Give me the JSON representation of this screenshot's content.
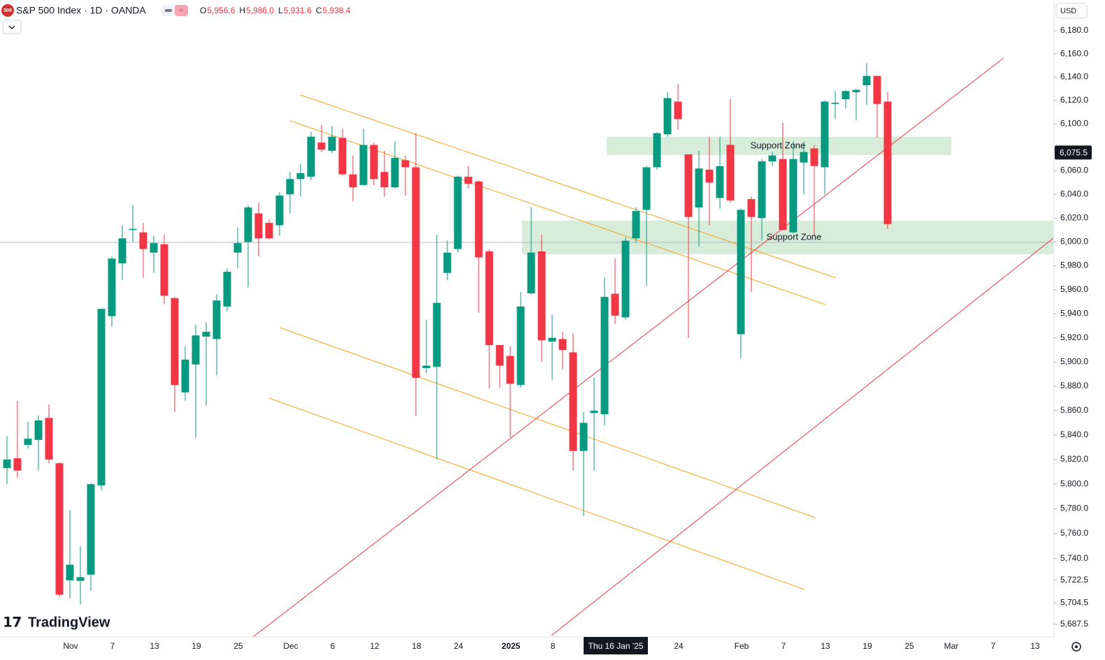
{
  "chart_data": {
    "type": "candlestick",
    "title": "S&P 500 Index · 1D · OANDA",
    "symbol_badge": "500",
    "currency": "USD",
    "brand": "TradingView",
    "legend_values": [
      {
        "key": "O",
        "value": "5,956.6"
      },
      {
        "key": "H",
        "value": "5,986.0"
      },
      {
        "key": "L",
        "value": "5,931.6"
      },
      {
        "key": "C",
        "value": "5,938.4"
      }
    ],
    "annotations": [
      "Support Zone",
      "Support Zone"
    ],
    "log_scale": true,
    "up_color": "#089981",
    "down_color": "#f23645",
    "ylim": [
      5678.4,
      6206.6
    ],
    "yticks": [
      {
        "value": 6180,
        "label": "6,180.0"
      },
      {
        "value": 6160,
        "label": "6,160.0"
      },
      {
        "value": 6140,
        "label": "6,140.0"
      },
      {
        "value": 6120,
        "label": "6,120.0"
      },
      {
        "value": 6100,
        "label": "6,100.0"
      },
      {
        "value": 6060,
        "label": "6,060.0"
      },
      {
        "value": 6040,
        "label": "6,040.0"
      },
      {
        "value": 6020,
        "label": "6,020.0"
      },
      {
        "value": 6000,
        "label": "6,000.0"
      },
      {
        "value": 5980,
        "label": "5,980.0"
      },
      {
        "value": 5960,
        "label": "5,960.0"
      },
      {
        "value": 5940,
        "label": "5,940.0"
      },
      {
        "value": 5920,
        "label": "5,920.0"
      },
      {
        "value": 5900,
        "label": "5,900.0"
      },
      {
        "value": 5880,
        "label": "5,880.0"
      },
      {
        "value": 5860,
        "label": "5,860.0"
      },
      {
        "value": 5840,
        "label": "5,840.0"
      },
      {
        "value": 5820,
        "label": "5,820.0"
      },
      {
        "value": 5800,
        "label": "5,800.0"
      },
      {
        "value": 5780,
        "label": "5,780.0"
      },
      {
        "value": 5760,
        "label": "5,760.0"
      },
      {
        "value": 5740,
        "label": "5,740.0"
      },
      {
        "value": 5722.5,
        "label": "5,722.5"
      },
      {
        "value": 5704.5,
        "label": "5,704.5"
      },
      {
        "value": 5687.5,
        "label": "5,687.5"
      }
    ],
    "price_label": {
      "value": 6075.5,
      "label": "6,075.5"
    },
    "categories": [
      null,
      null,
      null,
      null,
      null,
      null,
      "Nov",
      null,
      null,
      null,
      "7",
      null,
      null,
      null,
      "13",
      null,
      null,
      null,
      "19",
      null,
      null,
      null,
      "25",
      null,
      null,
      null,
      null,
      "Dec",
      null,
      null,
      null,
      "6",
      null,
      null,
      null,
      "12",
      null,
      null,
      null,
      "18",
      null,
      null,
      null,
      "24",
      null,
      null,
      null,
      null,
      "2025",
      null,
      null,
      null,
      "8",
      null,
      null,
      null,
      null,
      null,
      "Thu 16 Jan '25",
      null,
      null,
      null,
      null,
      null,
      "24",
      null,
      null,
      null,
      null,
      null,
      "Feb",
      null,
      null,
      null,
      "7",
      null,
      null,
      null,
      "13",
      null,
      null,
      null,
      "19",
      null,
      null,
      null,
      "25",
      null,
      null,
      null,
      "Mar",
      null,
      null,
      null,
      "7",
      null,
      null,
      null,
      "13"
    ],
    "open": [
      5813,
      5821,
      5832,
      5836,
      5854,
      5817,
      5722.5,
      5722,
      5727,
      5799,
      5938,
      5982,
      6010,
      6008,
      5991,
      5998,
      5953,
      5875,
      5898,
      5921,
      5919,
      5946,
      5991,
      6000,
      6024,
      6016,
      6014,
      6040,
      6053,
      6055,
      6084,
      6077,
      6088,
      6057,
      6048,
      6082,
      6059,
      6046,
      6069,
      6063,
      5895,
      5896,
      5974,
      5994,
      6055,
      6051,
      5992,
      5914,
      5905,
      5881,
      5957,
      5992,
      5917,
      5919,
      5908,
      5827,
      5858,
      5857,
      5956.6,
      5937,
      6003,
      6027,
      6063,
      6091,
      6119,
      6074,
      6029,
      6061,
      6037,
      6082,
      5923,
      6036,
      6020,
      6068,
      6070,
      6008,
      6067,
      6079,
      6063,
      6117,
      6121,
      6127,
      6133,
      6141,
      6119,
      null,
      null,
      null,
      null,
      null,
      null,
      null,
      null,
      null,
      null,
      null,
      null,
      null,
      null
    ],
    "high": [
      5839,
      5868,
      5851,
      5856,
      5865,
      5818,
      5779,
      5750,
      5801,
      5944,
      5988,
      6014,
      6031,
      6016,
      6005,
      6006,
      5954,
      5913,
      5931,
      5933,
      5956,
      5978,
      6012,
      6031,
      6033,
      6019,
      6042,
      6059,
      6066,
      6093,
      6099,
      6098,
      6096,
      6073,
      6096,
      6084,
      6077,
      6085,
      6073,
      6092,
      5935,
      6006,
      6001,
      6056,
      6064,
      6052,
      5994,
      5914,
      5913,
      5958,
      6029,
      6006,
      5939,
      5925,
      5924,
      5859,
      5887,
      5970,
      5986.0,
      6004,
      6029,
      6064,
      6093,
      6127,
      6134,
      6074,
      6077,
      6089,
      6089,
      6121,
      6028,
      6038,
      6070,
      6076,
      6101,
      6085,
      6085,
      6082,
      6120,
      6128,
      6129,
      6130,
      6152,
      6141,
      6127,
      null,
      null,
      null,
      null,
      null,
      null,
      null,
      null,
      null,
      null,
      null,
      null,
      null,
      null
    ],
    "low": [
      5800,
      5805,
      5829,
      5811,
      5817,
      5709,
      5708,
      5703,
      5714,
      5795,
      5929,
      5968,
      6000,
      5970,
      5974,
      5948,
      5859,
      5868,
      5838,
      5864,
      5889,
      5942,
      5978,
      5962,
      5988,
      6002,
      6005,
      6024,
      6038,
      6052,
      6076,
      6075,
      6056,
      6034,
      6047,
      6048,
      6038,
      6045,
      6039,
      5856,
      5891,
      5820,
      5968,
      5991,
      6045,
      5941,
      5878,
      5879,
      5838,
      5879,
      5956,
      5900,
      5885,
      5894,
      5811,
      5774,
      5811,
      5848,
      5931.6,
      5935,
      5999,
      5963,
      6061,
      6089,
      6095,
      5920,
      5996,
      6014,
      6028,
      6033,
      5903,
      5958,
      6001,
      6064,
      6010,
      6007,
      6040,
      6005,
      6040,
      6104,
      6113,
      6103,
      6116,
      6088,
      6011,
      null,
      null,
      null,
      null,
      null,
      null,
      null,
      null,
      null,
      null,
      null,
      null,
      null,
      null
    ],
    "close": [
      5820,
      5811,
      5837,
      5852,
      5820,
      5711,
      5735,
      5725,
      5800,
      5944,
      5986,
      6003,
      6011,
      5994,
      5999,
      5955,
      5881,
      5902,
      5922,
      5925,
      5951,
      5975,
      5999,
      6029,
      6003,
      6003,
      6039,
      6053,
      6058,
      6089,
      6078,
      6089,
      6057,
      6046,
      6082,
      6053,
      6046,
      6071,
      6063,
      5887,
      5897,
      5949,
      5991,
      6055,
      6049,
      5987,
      5914,
      5897,
      5882,
      5946,
      5991,
      5918,
      5920,
      5910,
      5827,
      5850,
      5860,
      5954,
      5938.4,
      6001,
      6026,
      6063,
      6092,
      6122,
      6104,
      6021,
      6062,
      6050,
      6064,
      6035,
      6027,
      6021,
      6068,
      6073,
      6010,
      6070,
      6076,
      6064,
      6119,
      6118,
      6128,
      6129,
      6141,
      6117,
      6015,
      null,
      null,
      null,
      null,
      null,
      null,
      null,
      null,
      null,
      null,
      null,
      null,
      null,
      null
    ]
  }
}
